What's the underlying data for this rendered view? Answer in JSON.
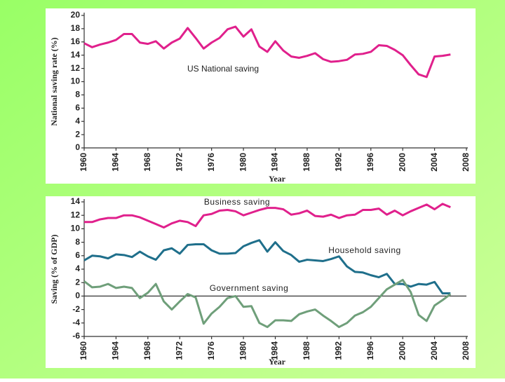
{
  "chart_data": [
    {
      "type": "line",
      "annotation": "US National saving",
      "ylabel": "National saving rate (%)",
      "xlabel": "Year",
      "color": "#e0208c",
      "x": [
        1960,
        1961,
        1962,
        1963,
        1964,
        1965,
        1966,
        1967,
        1968,
        1969,
        1970,
        1971,
        1972,
        1973,
        1974,
        1975,
        1976,
        1977,
        1978,
        1979,
        1980,
        1981,
        1982,
        1983,
        1984,
        1985,
        1986,
        1987,
        1988,
        1989,
        1990,
        1991,
        1992,
        1993,
        1994,
        1995,
        1996,
        1997,
        1998,
        1999,
        2000,
        2001,
        2002,
        2003,
        2004,
        2005,
        2006
      ],
      "values": [
        15.8,
        15.2,
        15.6,
        15.9,
        16.3,
        17.2,
        17.2,
        15.9,
        15.7,
        16.1,
        15.0,
        15.9,
        16.5,
        18.1,
        16.6,
        15.0,
        15.9,
        16.6,
        17.9,
        18.3,
        16.8,
        17.9,
        15.3,
        14.5,
        16.1,
        14.7,
        13.8,
        13.6,
        13.9,
        14.3,
        13.4,
        13.0,
        13.1,
        13.3,
        14.1,
        14.2,
        14.5,
        15.5,
        15.4,
        14.8,
        14.0,
        12.5,
        11.1,
        10.7,
        13.8,
        13.9,
        14.1
      ],
      "xlim": [
        1960,
        2008
      ],
      "xticks": [
        1960,
        1964,
        1968,
        1972,
        1976,
        1980,
        1984,
        1988,
        1992,
        1996,
        2000,
        2004,
        2008
      ],
      "ylim": [
        0,
        20
      ],
      "yticks": [
        0,
        2,
        4,
        6,
        8,
        10,
        12,
        14,
        16,
        18,
        20
      ]
    },
    {
      "type": "line",
      "ylabel": "Saving (% of GDP)",
      "xlabel": "Year",
      "zero_line": true,
      "x": [
        1960,
        1961,
        1962,
        1963,
        1964,
        1965,
        1966,
        1967,
        1968,
        1969,
        1970,
        1971,
        1972,
        1973,
        1974,
        1975,
        1976,
        1977,
        1978,
        1979,
        1980,
        1981,
        1982,
        1983,
        1984,
        1985,
        1986,
        1987,
        1988,
        1989,
        1990,
        1991,
        1992,
        1993,
        1994,
        1995,
        1996,
        1997,
        1998,
        1999,
        2000,
        2001,
        2002,
        2003,
        2004,
        2005,
        2006
      ],
      "series": [
        {
          "name": "Business saving",
          "color": "#e0208c",
          "values": [
            11,
            11,
            11.4,
            11.6,
            11.6,
            12,
            12,
            11.7,
            11.2,
            10.7,
            10.2,
            10.8,
            11.2,
            11.0,
            10.4,
            12,
            12.2,
            12.7,
            12.8,
            12.6,
            12.0,
            12.4,
            12.8,
            13.1,
            13.1,
            12.9,
            12.1,
            12.3,
            12.7,
            11.9,
            11.8,
            12.1,
            11.6,
            12.0,
            12.1,
            12.8,
            12.8,
            13.0,
            12.1,
            12.7,
            12.0,
            12.6,
            13.1,
            13.6,
            12.9,
            13.7,
            13.2
          ]
        },
        {
          "name": "Household saving",
          "color": "#1f6f8b",
          "values": [
            5.3,
            6.0,
            5.9,
            5.6,
            6.2,
            6.1,
            5.8,
            6.6,
            5.9,
            5.4,
            6.8,
            7.1,
            6.3,
            7.6,
            7.7,
            7.7,
            6.8,
            6.3,
            6.3,
            6.4,
            7.4,
            7.9,
            8.3,
            6.6,
            8.0,
            6.7,
            6.1,
            5.1,
            5.4,
            5.3,
            5.2,
            5.5,
            5.9,
            4.4,
            3.6,
            3.5,
            3.1,
            2.8,
            3.3,
            1.8,
            1.8,
            1.4,
            1.8,
            1.7,
            2.1,
            0.4,
            0.4
          ]
        },
        {
          "name": "Government saving",
          "color": "#6f9f7a",
          "values": [
            2.2,
            1.3,
            1.4,
            1.8,
            1.2,
            1.4,
            1.2,
            -0.3,
            0.5,
            1.8,
            -0.8,
            -2.0,
            -0.8,
            0.3,
            -0.2,
            -4.1,
            -2.6,
            -1.6,
            -0.3,
            0.0,
            -1.6,
            -1.5,
            -4.0,
            -4.6,
            -3.6,
            -3.6,
            -3.7,
            -2.7,
            -2.3,
            -2.0,
            -2.9,
            -3.7,
            -4.6,
            -4.0,
            -2.9,
            -2.4,
            -1.6,
            -0.3,
            1.0,
            1.7,
            2.4,
            0.6,
            -2.8,
            -3.7,
            -1.4,
            -0.6,
            0.3
          ]
        }
      ],
      "xlim": [
        1960,
        2008
      ],
      "xticks": [
        1960,
        1964,
        1968,
        1972,
        1976,
        1980,
        1984,
        1988,
        1992,
        1996,
        2000,
        2004,
        2008
      ],
      "ylim": [
        -6,
        14
      ],
      "yticks": [
        -6,
        -4,
        -2,
        0,
        2,
        4,
        6,
        8,
        10,
        12,
        14
      ]
    }
  ]
}
